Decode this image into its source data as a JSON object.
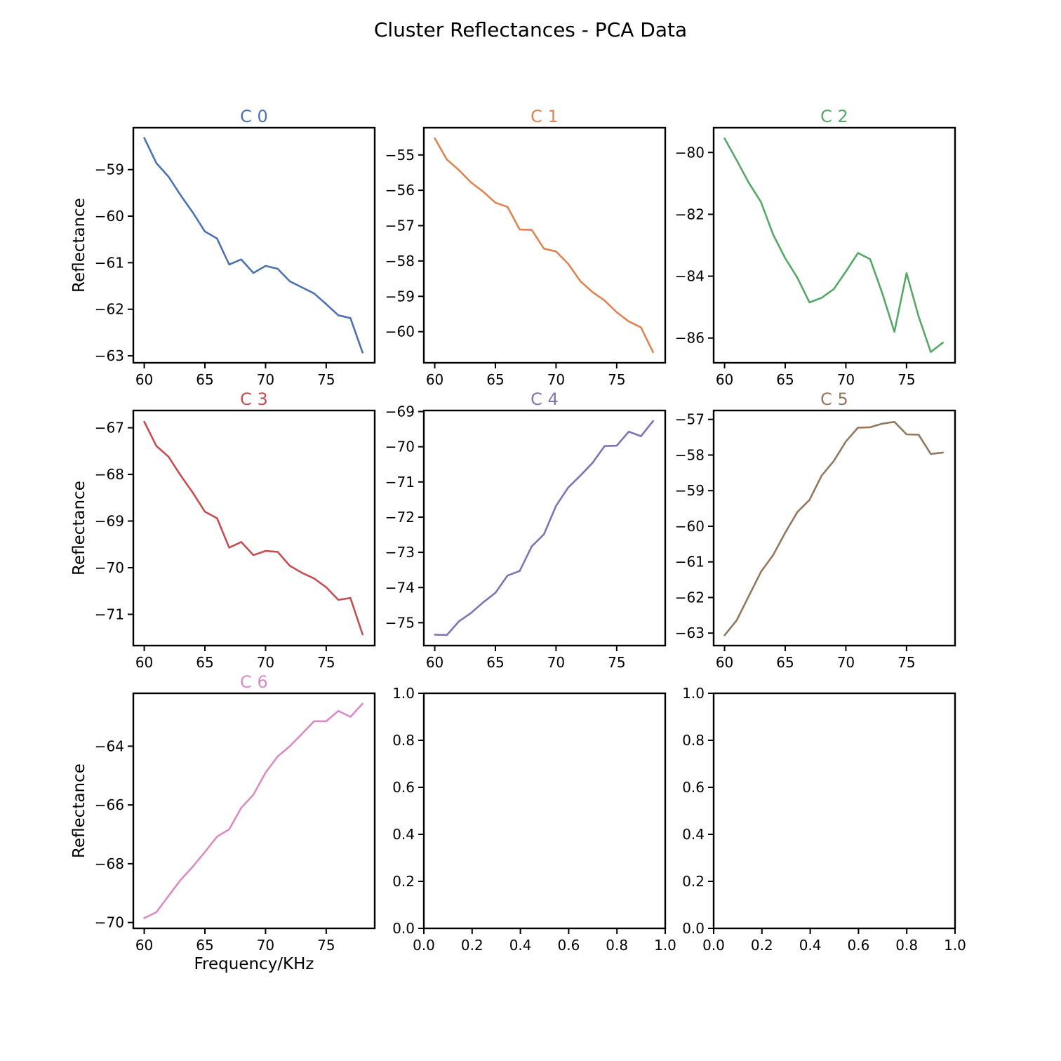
{
  "title": "Cluster Reflectances - PCA Data",
  "chart_data": [
    {
      "type": "line",
      "title": "C 0",
      "color": "#4c72b0",
      "xlabel": "",
      "ylabel": "Reflectance",
      "xlim": [
        59.1,
        79.0
      ],
      "ylim": [
        -63.15,
        -58.1
      ],
      "xticks": [
        60,
        65,
        70,
        75
      ],
      "yticks": [
        -63,
        -62,
        -61,
        -60,
        -59
      ],
      "x": [
        60,
        61,
        62,
        63,
        64,
        65,
        66,
        67,
        68,
        69,
        70,
        71,
        72,
        73,
        74,
        75,
        76,
        77,
        78
      ],
      "y": [
        -58.32,
        -58.86,
        -59.15,
        -59.55,
        -59.92,
        -60.33,
        -60.48,
        -61.04,
        -60.93,
        -61.22,
        -61.07,
        -61.13,
        -61.4,
        -61.53,
        -61.66,
        -61.89,
        -62.13,
        -62.19,
        -62.93
      ]
    },
    {
      "type": "line",
      "title": "C 1",
      "color": "#dd8452",
      "xlabel": "",
      "ylabel": "",
      "xlim": [
        59.1,
        79.0
      ],
      "ylim": [
        -60.88,
        -54.23
      ],
      "xticks": [
        60,
        65,
        70,
        75
      ],
      "yticks": [
        -60,
        -59,
        -58,
        -57,
        -56,
        -55
      ],
      "x": [
        60,
        61,
        62,
        63,
        64,
        65,
        66,
        67,
        68,
        69,
        70,
        71,
        72,
        73,
        74,
        75,
        76,
        77,
        78
      ],
      "y": [
        -54.53,
        -55.13,
        -55.43,
        -55.78,
        -56.04,
        -56.35,
        -56.47,
        -57.11,
        -57.12,
        -57.65,
        -57.73,
        -58.08,
        -58.57,
        -58.88,
        -59.12,
        -59.45,
        -59.71,
        -59.88,
        -60.58
      ]
    },
    {
      "type": "line",
      "title": "C 2",
      "color": "#55a868",
      "xlabel": "",
      "ylabel": "",
      "xlim": [
        59.1,
        79.0
      ],
      "ylim": [
        -86.8,
        -79.2
      ],
      "xticks": [
        60,
        65,
        70,
        75
      ],
      "yticks": [
        -86,
        -84,
        -82,
        -80
      ],
      "x": [
        60,
        61,
        62,
        63,
        64,
        65,
        66,
        67,
        68,
        69,
        70,
        71,
        72,
        73,
        74,
        75,
        76,
        77,
        78
      ],
      "y": [
        -79.55,
        -80.25,
        -80.98,
        -81.6,
        -82.65,
        -83.42,
        -84.05,
        -84.85,
        -84.7,
        -84.42,
        -83.85,
        -83.25,
        -83.45,
        -84.55,
        -85.8,
        -83.9,
        -85.3,
        -86.45,
        -86.15
      ]
    },
    {
      "type": "line",
      "title": "C 3",
      "color": "#c44e52",
      "xlabel": "",
      "ylabel": "Reflectance",
      "xlim": [
        59.1,
        79.0
      ],
      "ylim": [
        -71.67,
        -66.63
      ],
      "xticks": [
        60,
        65,
        70,
        75
      ],
      "yticks": [
        -71,
        -70,
        -69,
        -68,
        -67
      ],
      "x": [
        60,
        61,
        62,
        63,
        64,
        65,
        66,
        67,
        68,
        69,
        70,
        71,
        72,
        73,
        74,
        75,
        76,
        77,
        78
      ],
      "y": [
        -66.87,
        -67.39,
        -67.62,
        -68.02,
        -68.39,
        -68.8,
        -68.94,
        -69.57,
        -69.45,
        -69.73,
        -69.64,
        -69.66,
        -69.96,
        -70.11,
        -70.23,
        -70.42,
        -70.69,
        -70.65,
        -71.43
      ]
    },
    {
      "type": "line",
      "title": "C 4",
      "color": "#8172b3",
      "xlabel": "",
      "ylabel": "",
      "xlim": [
        59.1,
        79.0
      ],
      "ylim": [
        -75.65,
        -68.97
      ],
      "xticks": [
        60,
        65,
        70,
        75
      ],
      "yticks": [
        -75,
        -74,
        -73,
        -72,
        -71,
        -70,
        -69
      ],
      "x": [
        60,
        61,
        62,
        63,
        64,
        65,
        66,
        67,
        68,
        69,
        70,
        71,
        72,
        73,
        74,
        75,
        76,
        77,
        78
      ],
      "y": [
        -75.34,
        -75.35,
        -74.96,
        -74.72,
        -74.42,
        -74.15,
        -73.66,
        -73.53,
        -72.83,
        -72.49,
        -71.68,
        -71.16,
        -70.82,
        -70.46,
        -69.98,
        -69.97,
        -69.57,
        -69.7,
        -69.27
      ]
    },
    {
      "type": "line",
      "title": "C 5",
      "color": "#937860",
      "xlabel": "",
      "ylabel": "",
      "xlim": [
        59.1,
        79.0
      ],
      "ylim": [
        -63.35,
        -56.75
      ],
      "xticks": [
        60,
        65,
        70,
        75
      ],
      "yticks": [
        -63,
        -62,
        -61,
        -60,
        -59,
        -58,
        -57
      ],
      "x": [
        60,
        61,
        62,
        63,
        64,
        65,
        66,
        67,
        68,
        69,
        70,
        71,
        72,
        73,
        74,
        75,
        76,
        77,
        78
      ],
      "y": [
        -63.06,
        -62.64,
        -61.96,
        -61.28,
        -60.81,
        -60.18,
        -59.6,
        -59.26,
        -58.58,
        -58.17,
        -57.62,
        -57.23,
        -57.22,
        -57.12,
        -57.07,
        -57.42,
        -57.43,
        -57.97,
        -57.93
      ]
    },
    {
      "type": "line",
      "title": "C 6",
      "color": "#da8bc3",
      "xlabel": "Frequency/KHz",
      "ylabel": "Reflectance",
      "xlim": [
        59.1,
        79.0
      ],
      "ylim": [
        -70.2,
        -62.2
      ],
      "xticks": [
        60,
        65,
        70,
        75
      ],
      "yticks": [
        -70,
        -68,
        -66,
        -64
      ],
      "x": [
        60,
        61,
        62,
        63,
        64,
        65,
        66,
        67,
        68,
        69,
        70,
        71,
        72,
        73,
        74,
        75,
        76,
        77,
        78
      ],
      "y": [
        -69.85,
        -69.65,
        -69.1,
        -68.55,
        -68.1,
        -67.6,
        -67.08,
        -66.83,
        -66.1,
        -65.65,
        -64.9,
        -64.35,
        -64.0,
        -63.58,
        -63.15,
        -63.15,
        -62.8,
        -63.0,
        -62.55
      ]
    },
    {
      "type": "line",
      "title": "",
      "color": "",
      "xlabel": "",
      "ylabel": "",
      "xlim": [
        0,
        1
      ],
      "ylim": [
        0,
        1
      ],
      "xticks": [
        0.0,
        0.2,
        0.4,
        0.6,
        0.8,
        1.0
      ],
      "yticks": [
        0.0,
        0.2,
        0.4,
        0.6,
        0.8,
        1.0
      ],
      "x": [],
      "y": []
    },
    {
      "type": "line",
      "title": "",
      "color": "",
      "xlabel": "",
      "ylabel": "",
      "xlim": [
        0,
        1
      ],
      "ylim": [
        0,
        1
      ],
      "xticks": [
        0.0,
        0.2,
        0.4,
        0.6,
        0.8,
        1.0
      ],
      "yticks": [
        0.0,
        0.2,
        0.4,
        0.6,
        0.8,
        1.0
      ],
      "x": [],
      "y": []
    }
  ]
}
